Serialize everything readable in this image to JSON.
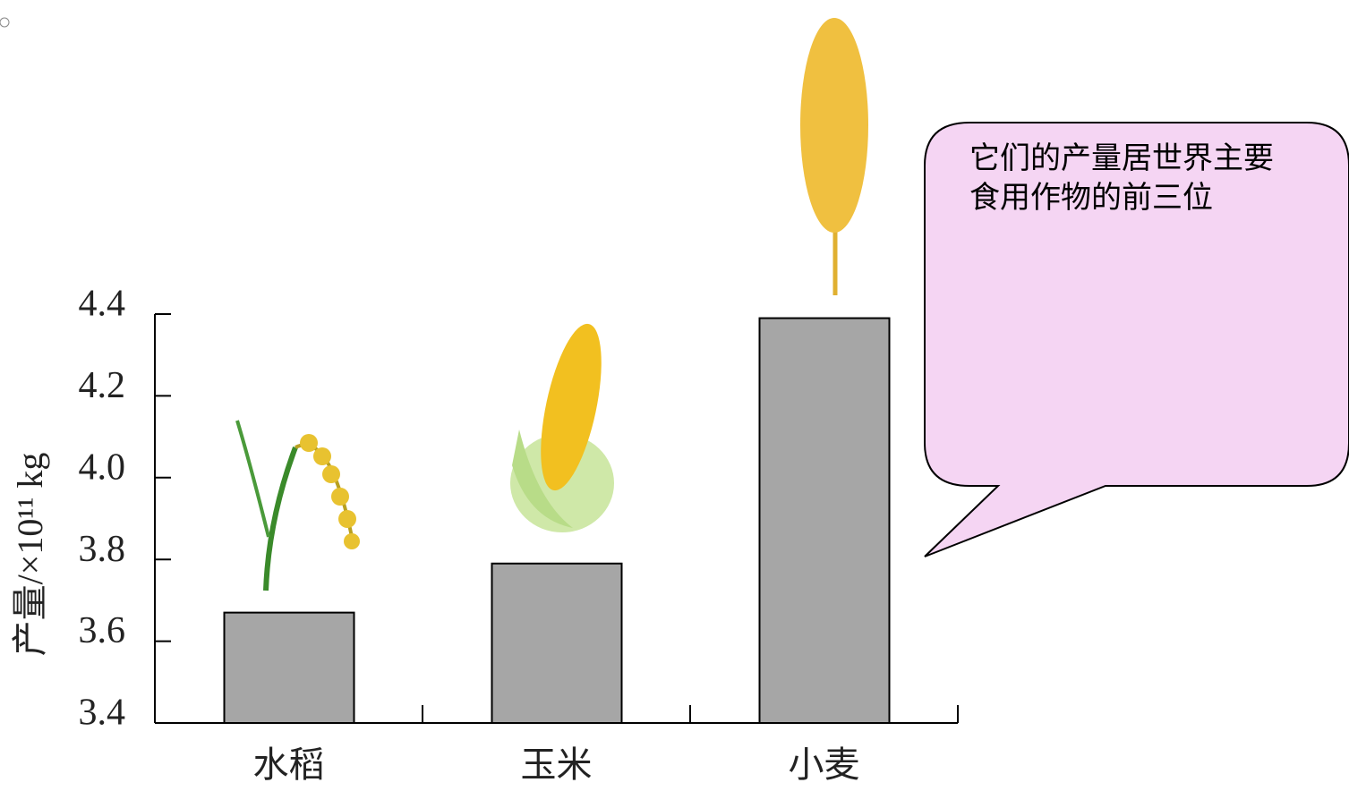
{
  "chart_data": {
    "type": "bar",
    "y_label": "产量/×10¹¹ kg",
    "annotation": "它们的产量居世界主要食用作物的前三位",
    "categories": [
      "水稻",
      "玉米",
      "小麦"
    ],
    "values": [
      3.67,
      3.79,
      4.39
    ],
    "color": "#a6a6a6",
    "ylim": [
      3.4,
      4.4
    ],
    "yticks": [
      3.4,
      3.6,
      3.8,
      {
        "value": 4,
        "label": "4.0"
      },
      4.2,
      4.4
    ]
  }
}
